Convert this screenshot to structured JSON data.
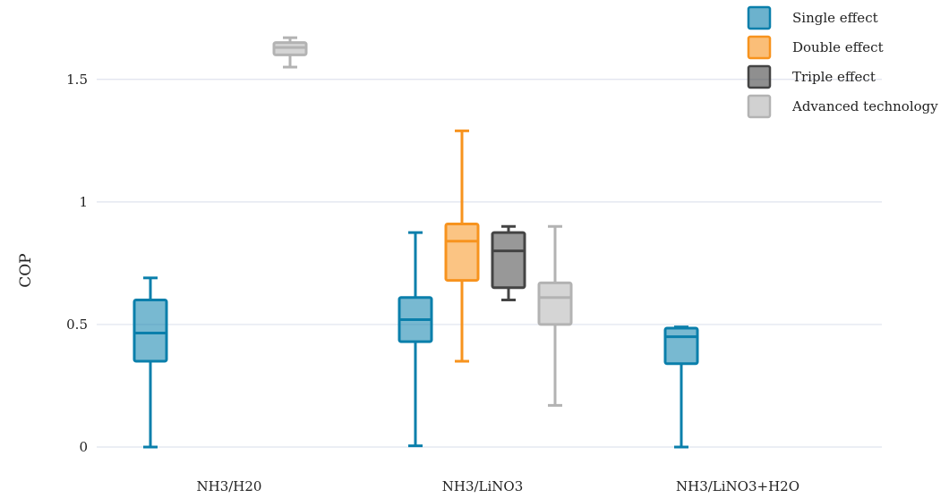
{
  "chart_data": {
    "type": "box",
    "title": "",
    "xlabel": "",
    "ylabel": "COP",
    "ylim": [
      0,
      1.78
    ],
    "yticks": [
      0,
      0.5,
      1,
      1.5
    ],
    "ytick_labels": [
      "0",
      "0.5",
      "1",
      "1.5"
    ],
    "grid": true,
    "legend_position": "top-right",
    "categories": [
      "NH3/H20",
      "NH3/LiNO3",
      "NH3/LiNO3+H2O"
    ],
    "series": [
      {
        "name": "Single effect",
        "color": "#0a7fab",
        "boxes": [
          {
            "category": "NH3/H20",
            "min": 0.0,
            "q1": 0.35,
            "median": 0.465,
            "q3": 0.6,
            "max": 0.69
          },
          {
            "category": "NH3/LiNO3",
            "min": 0.005,
            "q1": 0.43,
            "median": 0.52,
            "q3": 0.61,
            "max": 0.875
          },
          {
            "category": "NH3/LiNO3+H2O",
            "min": 0.0,
            "q1": 0.34,
            "median": 0.45,
            "q3": 0.485,
            "max": 0.49
          }
        ]
      },
      {
        "name": "Double effect",
        "color": "#f7931e",
        "boxes": [
          {
            "category": "NH3/LiNO3",
            "min": 0.35,
            "q1": 0.68,
            "median": 0.84,
            "q3": 0.91,
            "max": 1.29
          }
        ]
      },
      {
        "name": "Triple effect",
        "color": "#444444",
        "boxes": [
          {
            "category": "NH3/LiNO3",
            "min": 0.6,
            "q1": 0.65,
            "median": 0.8,
            "q3": 0.875,
            "max": 0.9
          }
        ]
      },
      {
        "name": "Advanced technology",
        "color": "#b3b3b3",
        "boxes": [
          {
            "category": "NH3/H20",
            "min": 1.55,
            "q1": 1.6,
            "median": 1.63,
            "q3": 1.65,
            "max": 1.67
          },
          {
            "category": "NH3/LiNO3",
            "min": 0.17,
            "q1": 0.5,
            "median": 0.61,
            "q3": 0.67,
            "max": 0.9
          }
        ]
      }
    ]
  }
}
